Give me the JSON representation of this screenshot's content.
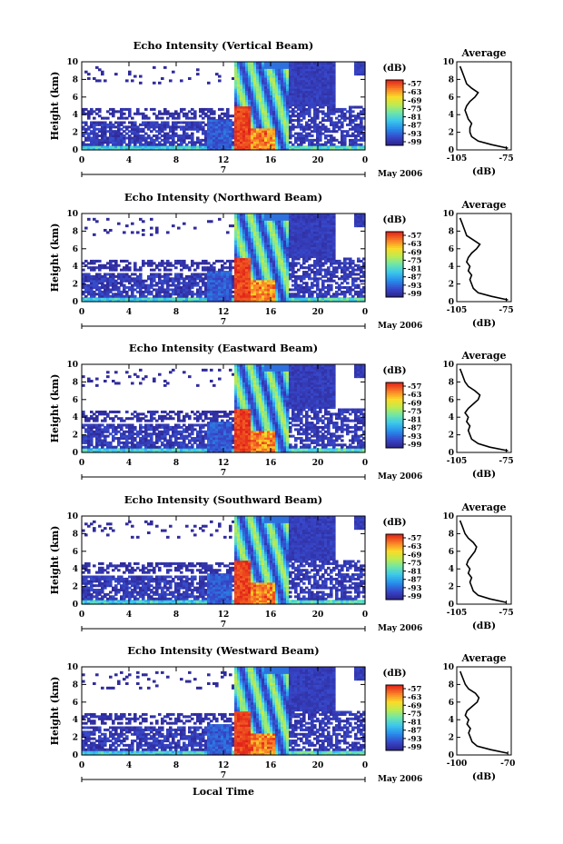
{
  "chart_data": [
    {
      "type": "heatmap",
      "title": "Echo Intensity (Vertical Beam)",
      "ylabel": "Height (km)",
      "x_ticks": [
        "0",
        "4",
        "8",
        "12",
        "16",
        "20",
        "0"
      ],
      "y_ticks": [
        "0",
        "2",
        "4",
        "6",
        "8",
        "10"
      ],
      "day_label": "7",
      "date_label": "May 2006",
      "colorbar": {
        "unit": "(dB)",
        "ticks": [
          "-57",
          "-63",
          "-69",
          "-75",
          "-81",
          "-87",
          "-93",
          "-99"
        ]
      },
      "average": {
        "title": "Average",
        "xlabel": "(dB)",
        "x_ticks": [
          "-105",
          "-75"
        ],
        "y_ticks": [
          "0",
          "2",
          "4",
          "6",
          "8",
          "10"
        ],
        "xlim": [
          -105,
          -72
        ],
        "height_km": [
          0.2,
          0.6,
          1.0,
          1.5,
          2.0,
          2.5,
          3.0,
          3.5,
          4.0,
          4.5,
          5.0,
          5.5,
          6.0,
          6.5,
          7.0,
          7.5,
          8.0,
          8.5,
          9.0,
          9.5
        ],
        "db": [
          -74,
          -84,
          -92,
          -96,
          -97,
          -97,
          -96,
          -98,
          -99,
          -100,
          -99,
          -97,
          -94,
          -92,
          -96,
          -99,
          -100,
          -101,
          -102,
          -103
        ]
      }
    },
    {
      "type": "heatmap",
      "title": "Echo Intensity (Northward Beam)",
      "ylabel": "Height (km)",
      "x_ticks": [
        "0",
        "4",
        "8",
        "12",
        "16",
        "20",
        "0"
      ],
      "y_ticks": [
        "0",
        "2",
        "4",
        "6",
        "8",
        "10"
      ],
      "day_label": "7",
      "date_label": "May 2006",
      "colorbar": {
        "unit": "(dB)",
        "ticks": [
          "-57",
          "-63",
          "-69",
          "-75",
          "-81",
          "-87",
          "-93",
          "-99"
        ]
      },
      "average": {
        "title": "Average",
        "xlabel": "(dB)",
        "x_ticks": [
          "-105",
          "-75"
        ],
        "y_ticks": [
          "0",
          "2",
          "4",
          "6",
          "8",
          "10"
        ],
        "xlim": [
          -105,
          -72
        ],
        "height_km": [
          0.2,
          0.6,
          1.0,
          1.5,
          2.0,
          2.5,
          3.0,
          3.5,
          4.0,
          4.5,
          5.0,
          5.5,
          6.0,
          6.5,
          7.0,
          7.5,
          8.0,
          8.5,
          9.0,
          9.5
        ],
        "db": [
          -74,
          -84,
          -92,
          -95,
          -96,
          -97,
          -96,
          -98,
          -97,
          -99,
          -98,
          -96,
          -93,
          -91,
          -95,
          -99,
          -100,
          -101,
          -102,
          -103
        ]
      }
    },
    {
      "type": "heatmap",
      "title": "Echo Intensity (Eastward Beam)",
      "ylabel": "Height (km)",
      "x_ticks": [
        "0",
        "4",
        "8",
        "12",
        "16",
        "20",
        "0"
      ],
      "y_ticks": [
        "0",
        "2",
        "4",
        "6",
        "8",
        "10"
      ],
      "day_label": "7",
      "date_label": "May 2006",
      "colorbar": {
        "unit": "(dB)",
        "ticks": [
          "-57",
          "-63",
          "-69",
          "-75",
          "-81",
          "-87",
          "-93",
          "-99"
        ]
      },
      "average": {
        "title": "Average",
        "xlabel": "(dB)",
        "x_ticks": [
          "-105",
          "-75"
        ],
        "y_ticks": [
          "0",
          "2",
          "4",
          "6",
          "8",
          "10"
        ],
        "xlim": [
          -105,
          -72
        ],
        "height_km": [
          0.2,
          0.6,
          1.0,
          1.5,
          2.0,
          2.5,
          3.0,
          3.5,
          4.0,
          4.5,
          5.0,
          5.5,
          6.0,
          6.5,
          7.0,
          7.5,
          8.0,
          8.5,
          9.0,
          9.5
        ],
        "db": [
          -74,
          -85,
          -92,
          -96,
          -97,
          -98,
          -97,
          -99,
          -98,
          -100,
          -98,
          -95,
          -92,
          -91,
          -94,
          -98,
          -100,
          -101,
          -102,
          -103
        ]
      }
    },
    {
      "type": "heatmap",
      "title": "Echo Intensity (Southward Beam)",
      "ylabel": "Height (km)",
      "x_ticks": [
        "0",
        "4",
        "8",
        "12",
        "16",
        "20",
        "0"
      ],
      "y_ticks": [
        "0",
        "2",
        "4",
        "6",
        "8",
        "10"
      ],
      "day_label": "7",
      "date_label": "May 2006",
      "colorbar": {
        "unit": "(dB)",
        "ticks": [
          "-57",
          "-63",
          "-69",
          "-75",
          "-81",
          "-87",
          "-93",
          "-99"
        ]
      },
      "average": {
        "title": "Average",
        "xlabel": "(dB)",
        "x_ticks": [
          "-105",
          "-75"
        ],
        "y_ticks": [
          "0",
          "2",
          "4",
          "6",
          "8",
          "10"
        ],
        "xlim": [
          -105,
          -72
        ],
        "height_km": [
          0.2,
          0.6,
          1.0,
          1.5,
          2.0,
          2.5,
          3.0,
          3.5,
          4.0,
          4.5,
          5.0,
          5.5,
          6.0,
          6.5,
          7.0,
          7.5,
          8.0,
          8.5,
          9.0,
          9.5
        ],
        "db": [
          -75,
          -85,
          -92,
          -95,
          -96,
          -97,
          -96,
          -98,
          -97,
          -99,
          -98,
          -96,
          -94,
          -93,
          -95,
          -98,
          -100,
          -101,
          -102,
          -103
        ]
      }
    },
    {
      "type": "heatmap",
      "title": "Echo Intensity (Westward Beam)",
      "ylabel": "Height (km)",
      "xlabel": "Local Time",
      "x_ticks": [
        "0",
        "4",
        "8",
        "12",
        "16",
        "20",
        "0"
      ],
      "y_ticks": [
        "0",
        "2",
        "4",
        "6",
        "8",
        "10"
      ],
      "day_label": "7",
      "date_label": "May 2006",
      "colorbar": {
        "unit": "(dB)",
        "ticks": [
          "-57",
          "-63",
          "-69",
          "-75",
          "-81",
          "-87",
          "-93",
          "-99"
        ]
      },
      "average": {
        "title": "Average",
        "xlabel": "(dB)",
        "x_ticks": [
          "-100",
          "-70"
        ],
        "y_ticks": [
          "0",
          "2",
          "4",
          "6",
          "8",
          "10"
        ],
        "xlim": [
          -100,
          -68
        ],
        "height_km": [
          0.2,
          0.6,
          1.0,
          1.5,
          2.0,
          2.5,
          3.0,
          3.5,
          4.0,
          4.5,
          5.0,
          5.5,
          6.0,
          6.5,
          7.0,
          7.5,
          8.0,
          8.5,
          9.0,
          9.5
        ],
        "db": [
          -70,
          -80,
          -88,
          -91,
          -92,
          -93,
          -92,
          -94,
          -93,
          -95,
          -94,
          -91,
          -88,
          -87,
          -89,
          -93,
          -95,
          -96,
          -97,
          -98
        ]
      }
    }
  ]
}
